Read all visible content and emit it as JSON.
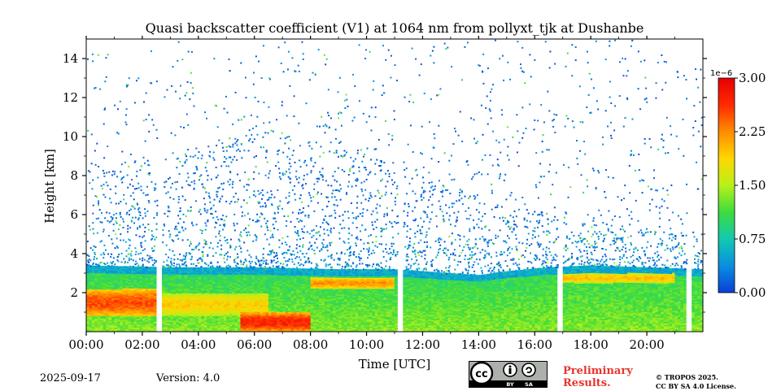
{
  "title": "Quasi backscatter coefficient (V1) at 1064 nm from pollyxt_tjk at Dushanbe",
  "footer": {
    "date": "2025-09-17",
    "version": "Version: 4.0",
    "preliminary_line1": "Preliminary",
    "preliminary_line2": "Results.",
    "copyright_line1": "© TROPOS 2025.",
    "copyright_line2": "CC BY SA 4.0 License.",
    "license_badge": {
      "cc": "cc",
      "by": "BY",
      "sa": "SA"
    }
  },
  "chart_data": {
    "type": "heatmap",
    "title": "Quasi backscatter coefficient (V1) at 1064 nm from pollyxt_tjk at Dushanbe",
    "xlabel": "Time [UTC]",
    "ylabel": "Height [km]",
    "xlim_hours": [
      0,
      22
    ],
    "ylim_km": [
      0,
      15
    ],
    "x_ticks": [
      {
        "value": 0,
        "label": "00:00"
      },
      {
        "value": 2,
        "label": "02:00"
      },
      {
        "value": 4,
        "label": "04:00"
      },
      {
        "value": 6,
        "label": "06:00"
      },
      {
        "value": 8,
        "label": "08:00"
      },
      {
        "value": 10,
        "label": "10:00"
      },
      {
        "value": 12,
        "label": "12:00"
      },
      {
        "value": 14,
        "label": "14:00"
      },
      {
        "value": 16,
        "label": "16:00"
      },
      {
        "value": 18,
        "label": "18:00"
      },
      {
        "value": 20,
        "label": "20:00"
      }
    ],
    "y_ticks": [
      {
        "value": 2,
        "label": "2"
      },
      {
        "value": 4,
        "label": "4"
      },
      {
        "value": 6,
        "label": "6"
      },
      {
        "value": 8,
        "label": "8"
      },
      {
        "value": 10,
        "label": "10"
      },
      {
        "value": 12,
        "label": "12"
      },
      {
        "value": 14,
        "label": "14"
      }
    ],
    "colorbar": {
      "exponent": "1e−6",
      "range": [
        0,
        3.0
      ],
      "ticks": [
        {
          "value": 0.0,
          "label": "0.00"
        },
        {
          "value": 0.75,
          "label": "0.75"
        },
        {
          "value": 1.5,
          "label": "1.50"
        },
        {
          "value": 2.25,
          "label": "2.25"
        },
        {
          "value": 3.0,
          "label": "3.00"
        }
      ],
      "colormap": [
        "#0a3fd4",
        "#0a8fe0",
        "#12c9b0",
        "#3ddc3d",
        "#b8f01a",
        "#ffd700",
        "#ff8c00",
        "#ff2a00",
        "#e60000"
      ]
    },
    "data_gaps_hours": [
      [
        2.5,
        2.68
      ],
      [
        11.12,
        11.32
      ],
      [
        16.85,
        17.0
      ],
      [
        21.45,
        21.6
      ]
    ],
    "boundary_layer_top_km": [
      [
        0,
        3.4
      ],
      [
        3,
        3.3
      ],
      [
        6,
        3.3
      ],
      [
        9,
        3.2
      ],
      [
        11,
        3.2
      ],
      [
        13,
        3.0
      ],
      [
        14,
        2.9
      ],
      [
        15,
        3.1
      ],
      [
        16.5,
        3.3
      ],
      [
        18,
        3.4
      ],
      [
        20,
        3.3
      ],
      [
        22,
        3.2
      ]
    ],
    "noise_top_km": [
      [
        0,
        8.5
      ],
      [
        3,
        9.0
      ],
      [
        6,
        10.5
      ],
      [
        9,
        9.5
      ],
      [
        11,
        9.0
      ],
      [
        13,
        7.5
      ],
      [
        15,
        6.5
      ],
      [
        17,
        6.0
      ],
      [
        19,
        5.5
      ],
      [
        22,
        5.0
      ]
    ],
    "layers": [
      {
        "t_start": 0,
        "t_end": 2.5,
        "z_bottom": 0.8,
        "z_top": 2.2,
        "peak_value": 2.5
      },
      {
        "t_start": 2.7,
        "t_end": 6.5,
        "z_bottom": 0.8,
        "z_top": 2.0,
        "peak_value": 1.9
      },
      {
        "t_start": 5.5,
        "t_end": 8.0,
        "z_bottom": 0.0,
        "z_top": 1.0,
        "peak_value": 2.7
      },
      {
        "t_start": 8.0,
        "t_end": 11.0,
        "z_bottom": 2.2,
        "z_top": 2.8,
        "peak_value": 2.2
      },
      {
        "t_start": 17.0,
        "t_end": 21.0,
        "z_bottom": 2.5,
        "z_top": 3.0,
        "peak_value": 2.0
      }
    ]
  }
}
